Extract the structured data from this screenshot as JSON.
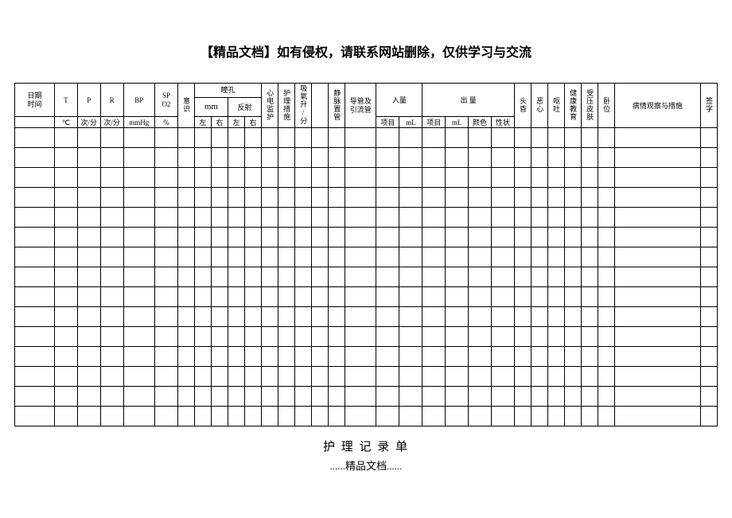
{
  "page_title": "【精品文档】如有侵权，请联系网站删除，仅供学习与交流",
  "footer_title": "护 理 记 录 单",
  "footer_sub": "......精品文档......",
  "headers": {
    "date_time": "日期\n时间",
    "T": "T",
    "P": "P",
    "R": "R",
    "BP": "BP",
    "SPO2": "SP\nO2",
    "consciousness": "意识",
    "pupil": "瞳孔",
    "mm": "mm",
    "reflex": "反射",
    "ecg": "心电监护",
    "nursing_measures": "护理措施",
    "oxygen": "吸氧升/分",
    "blank1": "",
    "vein": "静脉置管",
    "catheter": "导管及\n引流管",
    "intake": "入量",
    "output": "出 量",
    "dizzy": "头昏",
    "nausea": "恶心",
    "vomit": "呕吐",
    "health_edu": "健康教育",
    "pressure_skin": "受压皮肤",
    "position": "卧位",
    "observation": "病情观察与措施",
    "signature": "签字"
  },
  "sub_headers": {
    "left": "左",
    "right": "右",
    "item": "项目",
    "mL": "mL",
    "color": "颜色",
    "property": "性状"
  },
  "units": {
    "celsius": "℃",
    "per_min1": "次/分",
    "per_min2": "次/分",
    "mmHg": "mmHg",
    "percent": "%"
  },
  "num_body_rows": 15,
  "num_body_cols": 32,
  "colors": {
    "border": "#000000",
    "background": "#ffffff",
    "text": "#000000"
  },
  "fonts": {
    "title_size_pt": 16,
    "header_size_pt": 9,
    "unit_size_pt": 8,
    "family": "SimSun"
  }
}
